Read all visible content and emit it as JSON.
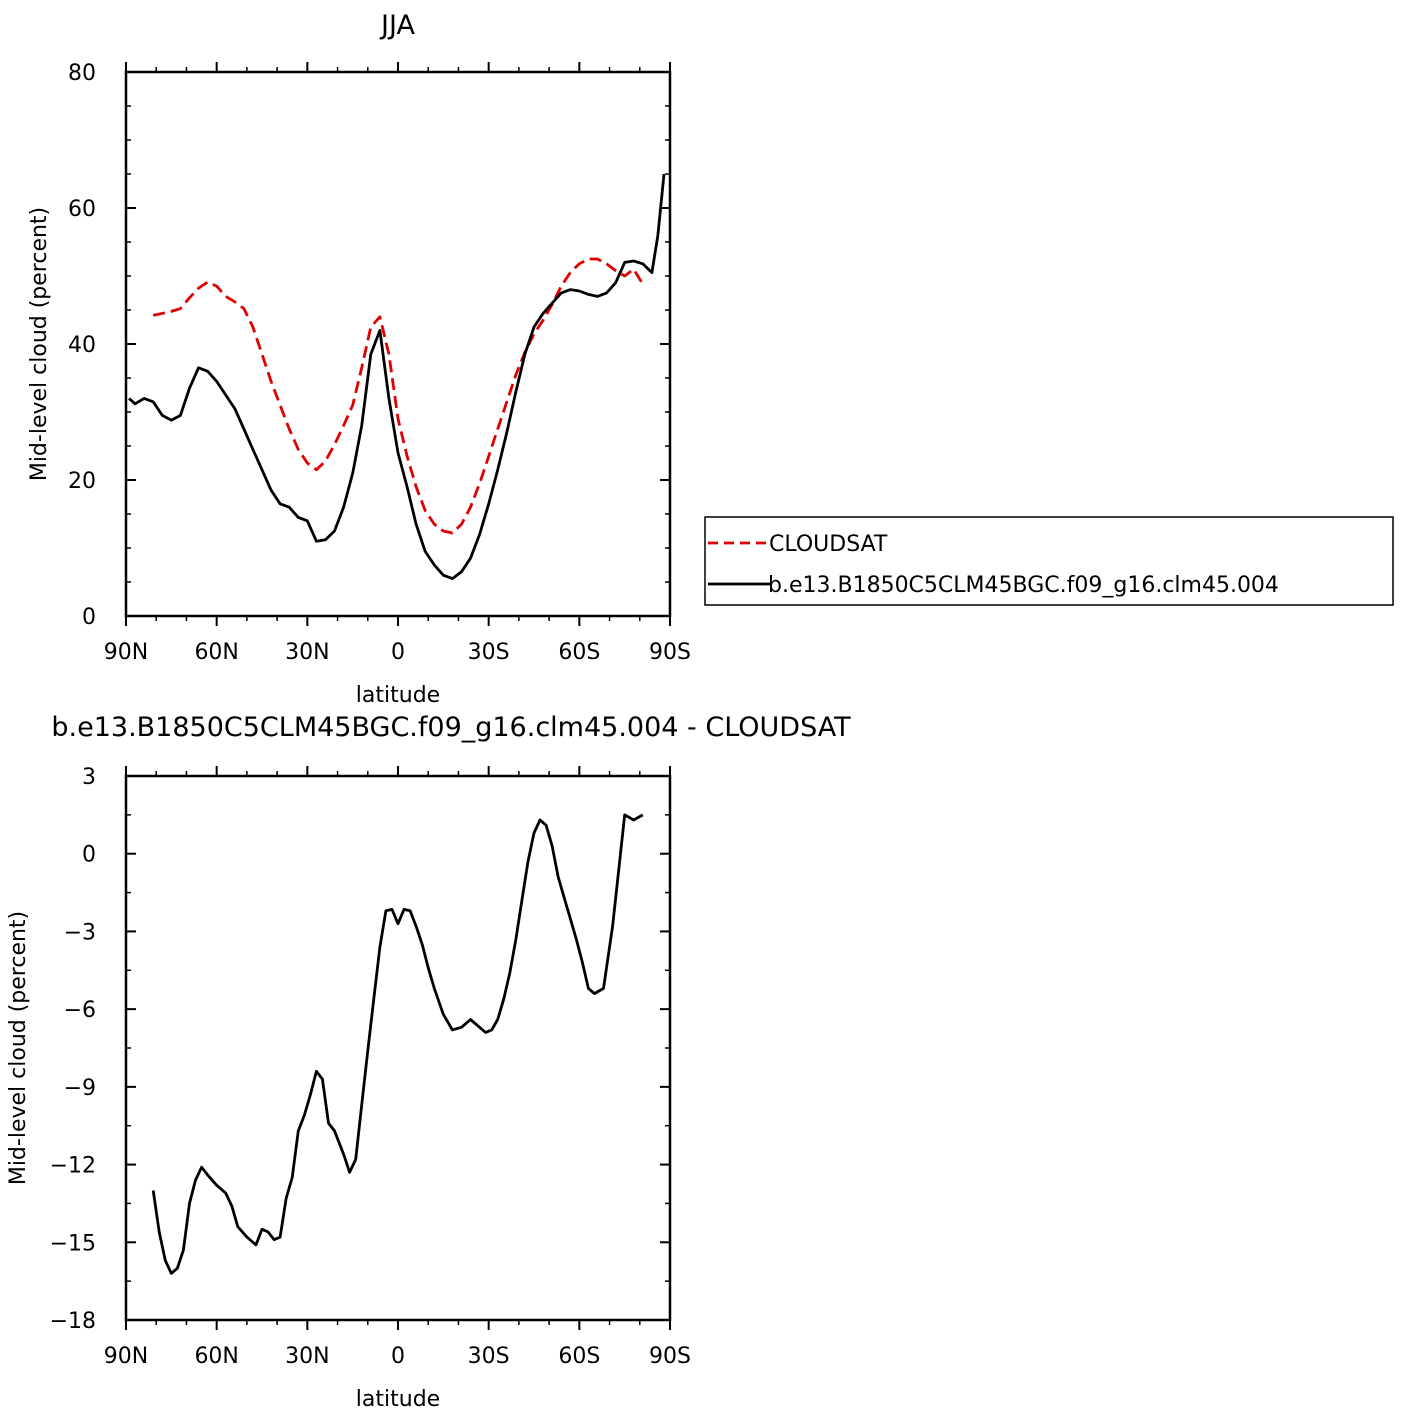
{
  "chart_data": [
    {
      "type": "line",
      "title": "JJA",
      "xlabel": "latitude",
      "ylabel": "Mid-level cloud (percent)",
      "xlim": [
        -90,
        90
      ],
      "ylim": [
        0,
        80
      ],
      "x_ticks": [
        -90,
        -60,
        -30,
        0,
        30,
        60,
        90
      ],
      "x_tick_labels": [
        "90N",
        "60N",
        "30N",
        "0",
        "30S",
        "60S",
        "90S"
      ],
      "y_ticks": [
        0,
        20,
        40,
        60,
        80
      ],
      "y_tick_labels": [
        "0",
        "20",
        "40",
        "60",
        "80"
      ],
      "legend_position": "right",
      "series": [
        {
          "name": "CLOUDSAT",
          "color": "#e00000",
          "dash": "dashed",
          "x": [
            -81,
            -78,
            -75,
            -72,
            -69,
            -66,
            -63,
            -60,
            -57,
            -54,
            -51,
            -48,
            -45,
            -42,
            -39,
            -36,
            -33,
            -30,
            -27,
            -24,
            -21,
            -18,
            -15,
            -12,
            -9,
            -6,
            -3,
            0,
            3,
            6,
            9,
            12,
            15,
            18,
            21,
            24,
            27,
            30,
            33,
            36,
            39,
            42,
            45,
            48,
            51,
            54,
            57,
            60,
            63,
            66,
            69,
            72,
            75,
            78,
            81
          ],
          "y": [
            44.2,
            44.5,
            44.8,
            45.2,
            46.8,
            48.2,
            49.1,
            48.5,
            47,
            46.2,
            45.2,
            42.5,
            38.5,
            34.5,
            31,
            27.5,
            24.5,
            22.5,
            21.5,
            22.8,
            25.2,
            28,
            31,
            36.5,
            42.5,
            44,
            38.5,
            29,
            23.5,
            19,
            15.5,
            13.5,
            12.5,
            12.2,
            13.5,
            16,
            19.5,
            23.5,
            27.5,
            31.5,
            35.5,
            38.8,
            41.5,
            43.5,
            45.8,
            48.5,
            50.5,
            51.8,
            52.5,
            52.5,
            51.8,
            50.8,
            50,
            51,
            48.8
          ]
        },
        {
          "name": "b.e13.B1850C5CLM45BGC.f09_g16.clm45.004",
          "color": "#000000",
          "dash": "solid",
          "x": [
            -89,
            -87,
            -84,
            -81,
            -78,
            -75,
            -72,
            -69,
            -66,
            -63,
            -60,
            -57,
            -54,
            -51,
            -48,
            -45,
            -42,
            -39,
            -36,
            -33,
            -30,
            -27,
            -24,
            -21,
            -18,
            -15,
            -12,
            -9,
            -6,
            -3,
            0,
            3,
            6,
            9,
            12,
            15,
            18,
            21,
            24,
            27,
            30,
            33,
            36,
            39,
            42,
            45,
            48,
            51,
            54,
            57,
            60,
            63,
            66,
            69,
            72,
            75,
            78,
            81,
            84,
            86,
            88
          ],
          "y": [
            32,
            31.2,
            32,
            31.5,
            29.5,
            28.8,
            29.5,
            33.5,
            36.5,
            36,
            34.5,
            32.5,
            30.5,
            27.5,
            24.5,
            21.5,
            18.5,
            16.5,
            16,
            14.5,
            14,
            11,
            11.2,
            12.5,
            16,
            21,
            28,
            38.5,
            42,
            32,
            24,
            19,
            13.5,
            9.5,
            7.5,
            6,
            5.5,
            6.5,
            8.5,
            12,
            16.5,
            21.5,
            27,
            33,
            38.5,
            42.5,
            44.5,
            46,
            47.5,
            48,
            47.8,
            47.3,
            47,
            47.5,
            49,
            52,
            52.2,
            51.8,
            50.5,
            56,
            65
          ]
        }
      ]
    },
    {
      "type": "line",
      "title": "b.e13.B1850C5CLM45BGC.f09_g16.clm45.004 - CLOUDSAT",
      "xlabel": "latitude",
      "ylabel": "Mid-level cloud (percent)",
      "xlim": [
        -90,
        90
      ],
      "ylim": [
        -18,
        3
      ],
      "x_ticks": [
        -90,
        -60,
        -30,
        0,
        30,
        60,
        90
      ],
      "x_tick_labels": [
        "90N",
        "60N",
        "30N",
        "0",
        "30S",
        "60S",
        "90S"
      ],
      "y_ticks": [
        -18,
        -15,
        -12,
        -9,
        -6,
        -3,
        0,
        3
      ],
      "y_tick_labels": [
        "-18",
        "-15",
        "-12",
        "-9",
        "-6",
        "-3",
        "0",
        "3"
      ],
      "series": [
        {
          "color": "#000000",
          "dash": "solid",
          "x": [
            -81,
            -79,
            -77,
            -75,
            -73,
            -71,
            -69,
            -67,
            -65,
            -63,
            -60,
            -57,
            -55,
            -53,
            -50,
            -47,
            -45,
            -43,
            -41,
            -39,
            -37,
            -35,
            -33,
            -31,
            -29,
            -27,
            -25,
            -23,
            -21,
            -18,
            -16,
            -14,
            -12,
            -10,
            -8,
            -6,
            -4,
            -2,
            0,
            2,
            4,
            6,
            8,
            10,
            12,
            15,
            18,
            21,
            24,
            27,
            29,
            31,
            33,
            35,
            37,
            39,
            41,
            43,
            45,
            47,
            49,
            51,
            53,
            55,
            57,
            59,
            61,
            63,
            65,
            68,
            71,
            75,
            78,
            81
          ],
          "y": [
            -13,
            -14.6,
            -15.7,
            -16.2,
            -16,
            -15.3,
            -13.5,
            -12.6,
            -12.1,
            -12.4,
            -12.8,
            -13.1,
            -13.6,
            -14.4,
            -14.8,
            -15.1,
            -14.5,
            -14.6,
            -14.9,
            -14.8,
            -13.3,
            -12.5,
            -10.7,
            -10.1,
            -9.3,
            -8.4,
            -8.7,
            -10.4,
            -10.7,
            -11.6,
            -12.3,
            -11.8,
            -9.7,
            -7.6,
            -5.6,
            -3.6,
            -2.2,
            -2.15,
            -2.7,
            -2.15,
            -2.2,
            -2.8,
            -3.5,
            -4.4,
            -5.2,
            -6.2,
            -6.8,
            -6.7,
            -6.4,
            -6.7,
            -6.9,
            -6.8,
            -6.4,
            -5.6,
            -4.6,
            -3.3,
            -1.8,
            -0.3,
            0.8,
            1.3,
            1.1,
            0.3,
            -0.9,
            -1.7,
            -2.5,
            -3.3,
            -4.2,
            -5.2,
            -5.4,
            -5.2,
            -2.8,
            1.5,
            1.3,
            1.5
          ]
        }
      ]
    }
  ]
}
